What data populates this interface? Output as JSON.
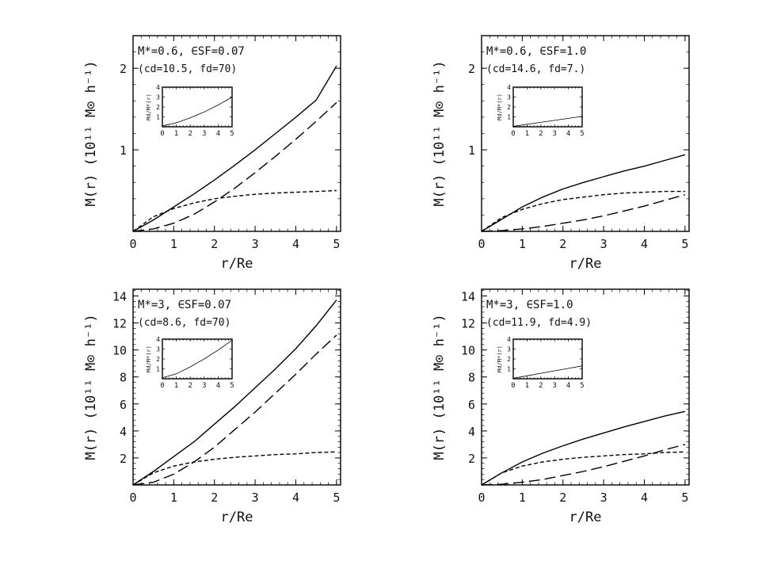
{
  "chart_data": [
    {
      "type": "line",
      "panel": "top-left",
      "label_line1": "M*=0.6, ∈SF=0.07",
      "label_line2": "(cd=10.5, fd=70)",
      "xlabel": "r/Re",
      "ylabel": "M(r)  (10¹¹ M⊙ h⁻¹)",
      "xlim": [
        0,
        5.1
      ],
      "ylim": [
        0,
        2.4
      ],
      "xticks": [
        0,
        1,
        2,
        3,
        4,
        5
      ],
      "yticks": [
        1,
        2
      ],
      "x": [
        0,
        0.5,
        1,
        1.5,
        2,
        2.5,
        3,
        3.5,
        4,
        4.5,
        5
      ],
      "series": [
        {
          "style": "solid",
          "values": [
            0,
            0.14,
            0.3,
            0.46,
            0.63,
            0.81,
            1.0,
            1.2,
            1.4,
            1.61,
            2.03
          ]
        },
        {
          "style": "long-dash",
          "values": [
            0,
            0.03,
            0.1,
            0.21,
            0.36,
            0.53,
            0.72,
            0.92,
            1.13,
            1.35,
            1.58
          ]
        },
        {
          "style": "short-dash",
          "values": [
            0,
            0.18,
            0.28,
            0.35,
            0.4,
            0.43,
            0.455,
            0.47,
            0.48,
            0.49,
            0.5
          ]
        }
      ],
      "inset": {
        "ylabel": "Md/M*(r)",
        "xlim": [
          0,
          5
        ],
        "ylim": [
          0,
          4
        ],
        "xticks": [
          0,
          1,
          2,
          3,
          4,
          5
        ],
        "yticks": [
          1,
          2,
          3,
          4
        ],
        "x": [
          0,
          1,
          2,
          3,
          4,
          5
        ],
        "values": [
          0.1,
          0.4,
          0.9,
          1.5,
          2.2,
          3.0
        ]
      }
    },
    {
      "type": "line",
      "panel": "top-right",
      "label_line1": "M*=0.6, ∈SF=1.0",
      "label_line2": "(cd=14.6, fd=7.)",
      "xlabel": "r/Re",
      "ylabel": "M(r)  (10¹¹ M⊙ h⁻¹)",
      "xlim": [
        0,
        5.1
      ],
      "ylim": [
        0,
        2.4
      ],
      "xticks": [
        0,
        1,
        2,
        3,
        4,
        5
      ],
      "yticks": [
        1,
        2
      ],
      "x": [
        0,
        0.5,
        1,
        1.5,
        2,
        2.5,
        3,
        3.5,
        4,
        4.5,
        5
      ],
      "series": [
        {
          "style": "solid",
          "values": [
            0,
            0.15,
            0.3,
            0.42,
            0.52,
            0.6,
            0.67,
            0.74,
            0.8,
            0.87,
            0.94
          ]
        },
        {
          "style": "long-dash",
          "values": [
            0,
            0.01,
            0.03,
            0.06,
            0.1,
            0.14,
            0.19,
            0.25,
            0.31,
            0.38,
            0.45
          ]
        },
        {
          "style": "short-dash",
          "values": [
            0,
            0.17,
            0.27,
            0.34,
            0.39,
            0.42,
            0.45,
            0.47,
            0.48,
            0.49,
            0.49
          ]
        }
      ],
      "inset": {
        "ylabel": "Md/M*(r)",
        "xlim": [
          0,
          5
        ],
        "ylim": [
          0,
          4
        ],
        "xticks": [
          0,
          1,
          2,
          3,
          4,
          5
        ],
        "yticks": [
          1,
          2,
          3,
          4
        ],
        "x": [
          0,
          1,
          2,
          3,
          4,
          5
        ],
        "values": [
          0.05,
          0.25,
          0.45,
          0.65,
          0.85,
          1.05
        ]
      }
    },
    {
      "type": "line",
      "panel": "bottom-left",
      "label_line1": "M*=3, ∈SF=0.07",
      "label_line2": "(cd=8.6, fd=70)",
      "xlabel": "r/Re",
      "ylabel": "M(r)  (10¹¹ M⊙ h⁻¹)",
      "xlim": [
        0,
        5.1
      ],
      "ylim": [
        0,
        14.5
      ],
      "xticks": [
        0,
        1,
        2,
        3,
        4,
        5
      ],
      "yticks": [
        2,
        4,
        6,
        8,
        10,
        12,
        14
      ],
      "x": [
        0,
        0.5,
        1,
        1.5,
        2,
        2.5,
        3,
        3.5,
        4,
        4.5,
        5
      ],
      "series": [
        {
          "style": "solid",
          "values": [
            0,
            1.0,
            2.1,
            3.2,
            4.5,
            5.8,
            7.2,
            8.6,
            10.1,
            11.8,
            13.7
          ]
        },
        {
          "style": "long-dash",
          "values": [
            0,
            0.2,
            0.8,
            1.7,
            2.8,
            4.1,
            5.4,
            6.8,
            8.2,
            9.7,
            11.1
          ]
        },
        {
          "style": "short-dash",
          "values": [
            0,
            0.9,
            1.4,
            1.7,
            1.9,
            2.05,
            2.15,
            2.25,
            2.3,
            2.4,
            2.45
          ]
        }
      ],
      "inset": {
        "ylabel": "Md/M*(r)",
        "xlim": [
          0,
          5
        ],
        "ylim": [
          0,
          4
        ],
        "xticks": [
          0,
          1,
          2,
          3,
          4,
          5
        ],
        "yticks": [
          1,
          2,
          3,
          4
        ],
        "x": [
          0,
          1,
          2,
          3,
          4,
          5
        ],
        "values": [
          0.1,
          0.5,
          1.2,
          2.0,
          2.9,
          3.9
        ]
      }
    },
    {
      "type": "line",
      "panel": "bottom-right",
      "label_line1": "M*=3, ∈SF=1.0",
      "label_line2": "(cd=11.9, fd=4.9)",
      "xlabel": "r/Re",
      "ylabel": "M(r)  (10¹¹ M⊙ h⁻¹)",
      "xlim": [
        0,
        5.1
      ],
      "ylim": [
        0,
        14.5
      ],
      "xticks": [
        0,
        1,
        2,
        3,
        4,
        5
      ],
      "yticks": [
        2,
        4,
        6,
        8,
        10,
        12,
        14
      ],
      "x": [
        0,
        0.5,
        1,
        1.5,
        2,
        2.5,
        3,
        3.5,
        4,
        4.5,
        5
      ],
      "series": [
        {
          "style": "solid",
          "values": [
            0,
            0.9,
            1.7,
            2.35,
            2.9,
            3.4,
            3.85,
            4.3,
            4.7,
            5.1,
            5.45
          ]
        },
        {
          "style": "long-dash",
          "values": [
            0,
            0.05,
            0.2,
            0.4,
            0.7,
            1.0,
            1.35,
            1.75,
            2.15,
            2.6,
            3.0
          ]
        },
        {
          "style": "short-dash",
          "values": [
            0,
            0.9,
            1.4,
            1.7,
            1.9,
            2.05,
            2.15,
            2.25,
            2.3,
            2.4,
            2.45
          ]
        }
      ],
      "inset": {
        "ylabel": "Md/M*(r)",
        "xlim": [
          0,
          5
        ],
        "ylim": [
          0,
          4
        ],
        "xticks": [
          0,
          1,
          2,
          3,
          4,
          5
        ],
        "yticks": [
          1,
          2,
          3,
          4
        ],
        "x": [
          0,
          1,
          2,
          3,
          4,
          5
        ],
        "values": [
          0.05,
          0.3,
          0.55,
          0.8,
          1.05,
          1.3
        ]
      }
    }
  ]
}
